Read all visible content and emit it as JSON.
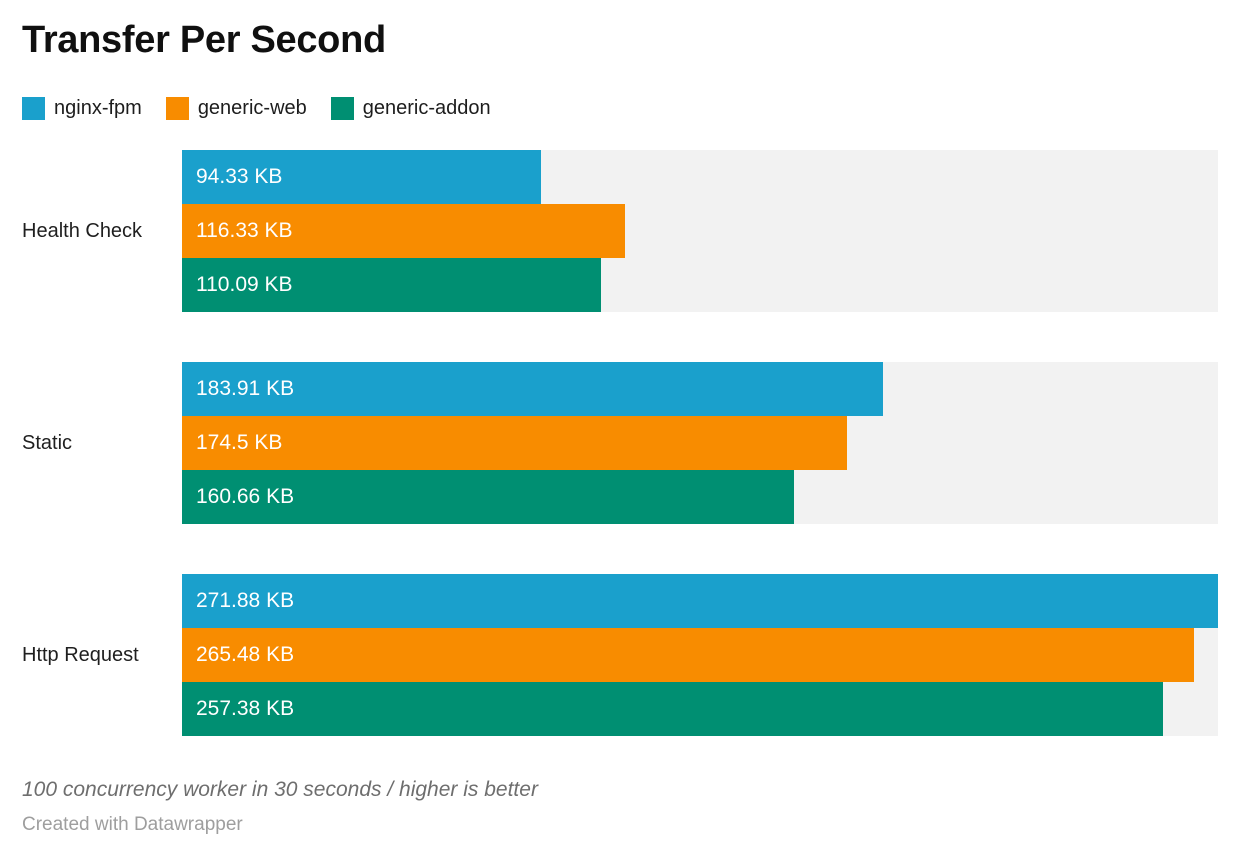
{
  "title": "Transfer Per Second",
  "legend": {
    "items": [
      {
        "label": "nginx-fpm",
        "color": "#1aa0cc"
      },
      {
        "label": "generic-web",
        "color": "#f88c00"
      },
      {
        "label": "generic-addon",
        "color": "#008f72"
      }
    ]
  },
  "chart_data": {
    "type": "bar",
    "orientation": "horizontal",
    "title": "Transfer Per Second",
    "categories": [
      "Health Check",
      "Static",
      "Http Request"
    ],
    "series": [
      {
        "name": "nginx-fpm",
        "color": "#1aa0cc",
        "values": [
          94.33,
          183.91,
          271.88
        ],
        "labels": [
          "94.33 KB",
          "183.91 KB",
          "271.88 KB"
        ]
      },
      {
        "name": "generic-web",
        "color": "#f88c00",
        "values": [
          116.33,
          174.5,
          265.48
        ],
        "labels": [
          "116.33 KB",
          "174.5 KB",
          "265.48 KB"
        ]
      },
      {
        "name": "generic-addon",
        "color": "#008f72",
        "values": [
          110.09,
          160.66,
          257.38
        ],
        "labels": [
          "110.09 KB",
          "160.66 KB",
          "257.38 KB"
        ]
      }
    ],
    "xlim": [
      0,
      271.88
    ],
    "unit": "KB",
    "grid": false,
    "legend_position": "top",
    "track_color": "#f2f2f2",
    "value_label_color": "#ffffff"
  },
  "footnote": "100 concurrency worker in 30 seconds / higher is better",
  "byline": "Created with Datawrapper"
}
